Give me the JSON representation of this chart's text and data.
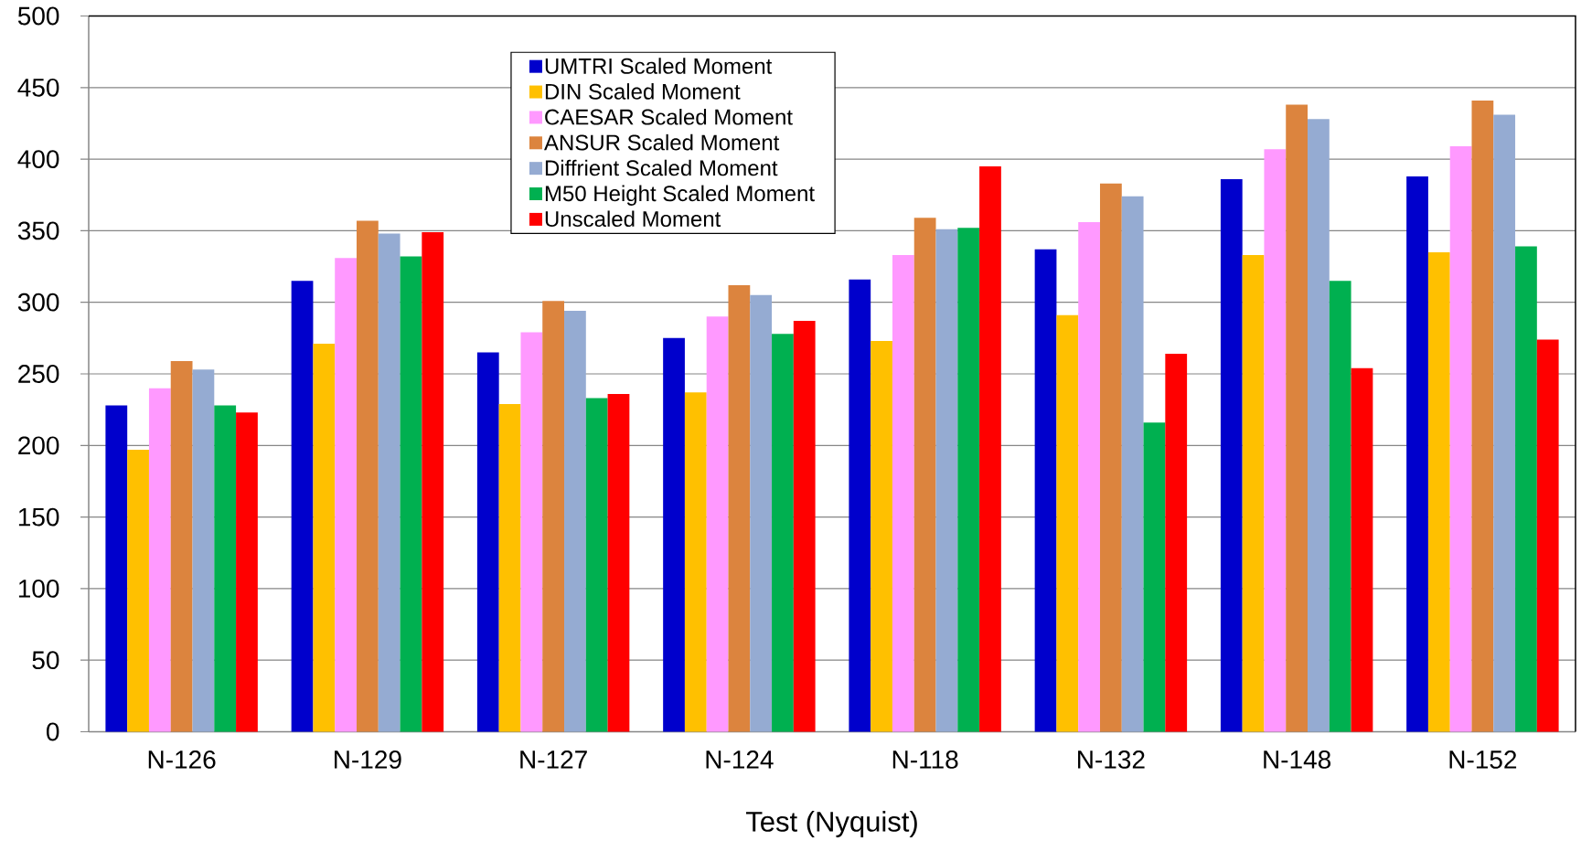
{
  "chart_data": {
    "type": "bar",
    "xlabel": "Test (Nyquist)",
    "categories": [
      "N-126",
      "N-129",
      "N-127",
      "N-124",
      "N-118",
      "N-132",
      "N-148",
      "N-152"
    ],
    "series": [
      {
        "name": "UMTRI Scaled Moment",
        "color": "#0000cc",
        "values": [
          228,
          315,
          265,
          275,
          316,
          337,
          386,
          388
        ]
      },
      {
        "name": "DIN Scaled Moment",
        "color": "#ffc000",
        "values": [
          197,
          271,
          229,
          237,
          273,
          291,
          333,
          335
        ]
      },
      {
        "name": "CAESAR Scaled Moment",
        "color": "#ff99ff",
        "values": [
          240,
          331,
          279,
          290,
          333,
          356,
          407,
          409
        ]
      },
      {
        "name": "ANSUR Scaled Moment",
        "color": "#dc843e",
        "values": [
          259,
          357,
          301,
          312,
          359,
          383,
          438,
          441
        ]
      },
      {
        "name": "Diffrient Scaled Moment",
        "color": "#95abd2",
        "values": [
          253,
          348,
          294,
          305,
          351,
          374,
          428,
          431
        ]
      },
      {
        "name": "M50 Height Scaled Moment",
        "color": "#00b050",
        "values": [
          228,
          332,
          233,
          278,
          352,
          216,
          315,
          339
        ]
      },
      {
        "name": "Unscaled Moment",
        "color": "#ff0000",
        "values": [
          223,
          349,
          236,
          287,
          395,
          264,
          254,
          274
        ]
      }
    ],
    "ylim": [
      0,
      500
    ],
    "yticks": [
      0,
      50,
      100,
      150,
      200,
      250,
      300,
      350,
      400,
      450,
      500
    ],
    "grid": "y",
    "legend": "top"
  }
}
